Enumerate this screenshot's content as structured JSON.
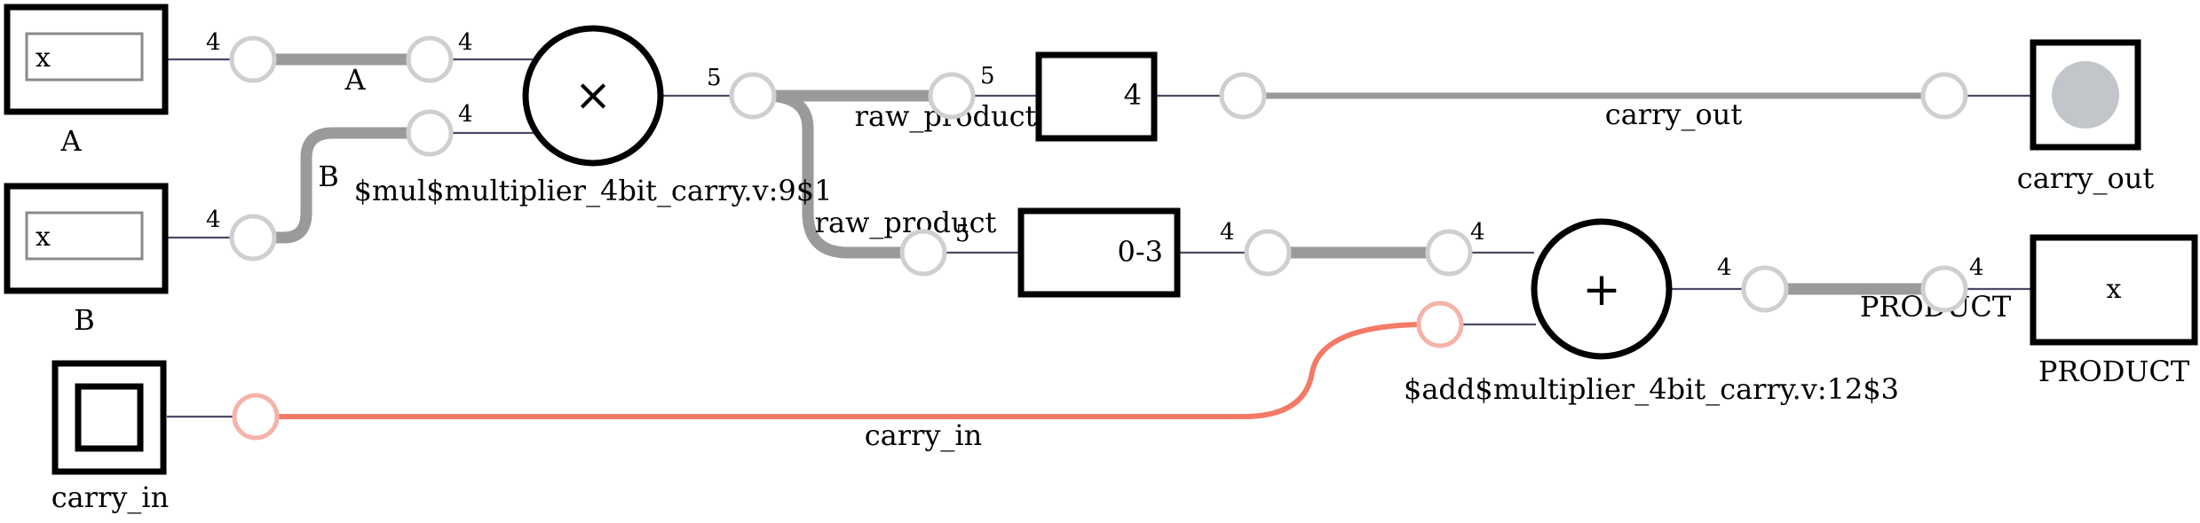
{
  "inputs": {
    "a": {
      "name": "A",
      "value": "x",
      "width": "4"
    },
    "b": {
      "name": "B",
      "value": "x",
      "width": "4"
    },
    "carry_in": {
      "name": "carry_in"
    }
  },
  "multiplier": {
    "symbol": "×",
    "label": "$mul$multiplier_4bit_carry.v:9$1",
    "in_a_width": "4",
    "in_b_width": "4",
    "out_width": "5"
  },
  "adder": {
    "symbol": "+",
    "label": "$add$multiplier_4bit_carry.v:12$3",
    "in_width": "4",
    "out_width": "4"
  },
  "slices": {
    "upper": {
      "text": "4",
      "in_width": "5"
    },
    "lower": {
      "text": "0-3",
      "in_width": "5",
      "out_width": "4"
    }
  },
  "outputs": {
    "carry_out": {
      "name": "carry_out"
    },
    "product": {
      "name": "PRODUCT",
      "value": "x",
      "width": "4"
    }
  },
  "nets": {
    "a": "A",
    "b": "B",
    "raw_product_upper": "raw_product",
    "raw_product_lower": "raw_product",
    "carry_out": "carry_out",
    "carry_in": "carry_in",
    "product": "PRODUCT"
  },
  "colors": {
    "active_wire": "#f47a66",
    "bus_wire": "#9a9a9a",
    "led_off": "#c2c5c9"
  }
}
